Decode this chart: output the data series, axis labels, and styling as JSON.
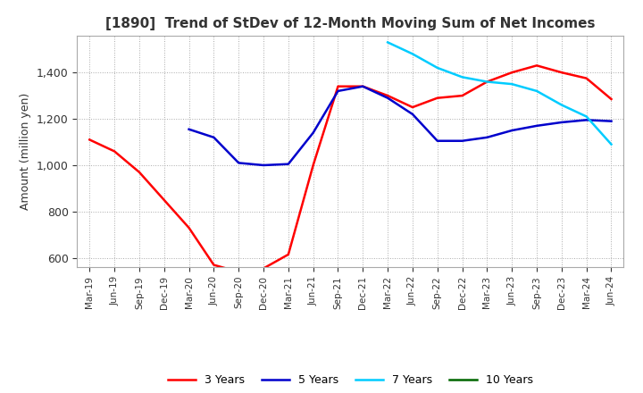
{
  "title": "[1890]  Trend of StDev of 12-Month Moving Sum of Net Incomes",
  "ylabel": "Amount (million yen)",
  "ylim": [
    560,
    1560
  ],
  "yticks": [
    600,
    800,
    1000,
    1200,
    1400
  ],
  "line_colors": {
    "3yr": "#ff0000",
    "5yr": "#0000cc",
    "7yr": "#00ccff",
    "10yr": "#006600"
  },
  "legend_labels": [
    "3 Years",
    "5 Years",
    "7 Years",
    "10 Years"
  ],
  "x_labels": [
    "Mar-19",
    "Jun-19",
    "Sep-19",
    "Dec-19",
    "Mar-20",
    "Jun-20",
    "Sep-20",
    "Dec-20",
    "Mar-21",
    "Jun-21",
    "Sep-21",
    "Dec-21",
    "Mar-22",
    "Jun-22",
    "Sep-22",
    "Dec-22",
    "Mar-23",
    "Jun-23",
    "Sep-23",
    "Dec-23",
    "Mar-24",
    "Jun-24"
  ],
  "data_3yr": [
    1110,
    1060,
    970,
    850,
    730,
    570,
    540,
    555,
    615,
    1000,
    1340,
    1340,
    1300,
    1250,
    1290,
    1300,
    1360,
    1400,
    1430,
    1400,
    1375,
    1285
  ],
  "data_5yr": [
    null,
    null,
    null,
    null,
    1155,
    1120,
    1010,
    1000,
    1005,
    1140,
    1320,
    1340,
    1290,
    1220,
    1105,
    1105,
    1120,
    1150,
    1170,
    1185,
    1195,
    1190
  ],
  "data_7yr": [
    null,
    null,
    null,
    null,
    null,
    null,
    null,
    null,
    null,
    null,
    null,
    null,
    1530,
    1480,
    1420,
    1380,
    1360,
    1350,
    1320,
    1260,
    1210,
    1090
  ],
  "data_10yr": [
    null,
    null,
    null,
    null,
    null,
    null,
    null,
    null,
    null,
    null,
    null,
    null,
    null,
    null,
    null,
    null,
    null,
    null,
    null,
    null,
    null,
    null
  ],
  "figsize": [
    7.2,
    4.4
  ],
  "dpi": 100
}
